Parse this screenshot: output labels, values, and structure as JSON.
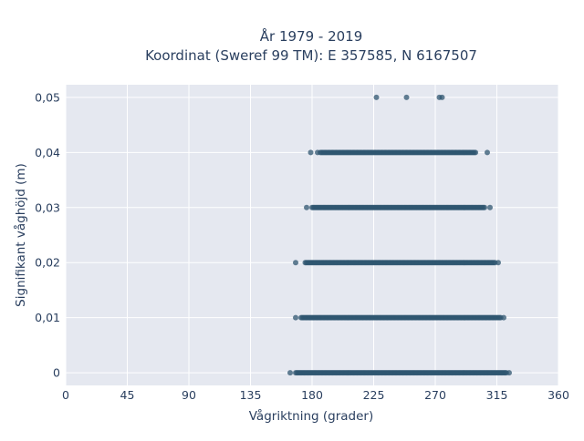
{
  "chart_data": {
    "type": "scatter",
    "title_lines": [
      "År 1979 - 2019",
      "Koordinat (Sweref 99 TM): E 357585, N 6167507"
    ],
    "xlabel": "Vågriktning (grader)",
    "ylabel": "Signifikant våghöjd (m)",
    "xlim": [
      0,
      360
    ],
    "ylim": [
      -0.0023,
      0.0523
    ],
    "x_ticks": [
      0,
      45,
      90,
      135,
      180,
      225,
      270,
      315,
      360
    ],
    "x_tick_labels": [
      "0",
      "45",
      "90",
      "135",
      "180",
      "225",
      "270",
      "315",
      "360"
    ],
    "y_ticks": [
      0,
      0.01,
      0.02,
      0.03,
      0.04,
      0.05
    ],
    "y_tick_labels": [
      "0",
      "0,01",
      "0,02",
      "0,03",
      "0,04",
      "0,05"
    ],
    "grid": true,
    "marker_color": "#2f5570",
    "plot_bg": "#e5e8f0",
    "series": [
      {
        "y": 0.0,
        "dense_range": [
          168,
          322
        ],
        "x_extra": [
          164,
          324
        ]
      },
      {
        "y": 0.01,
        "dense_range": [
          172,
          318
        ],
        "x_extra": [
          168,
          320
        ]
      },
      {
        "y": 0.02,
        "dense_range": [
          175,
          314
        ],
        "x_extra": [
          168,
          316
        ]
      },
      {
        "y": 0.03,
        "dense_range": [
          180,
          306
        ],
        "x_extra": [
          176,
          310
        ]
      },
      {
        "y": 0.04,
        "dense_range": [
          186,
          300
        ],
        "x_extra": [
          179,
          184,
          308
        ]
      },
      {
        "y": 0.05,
        "dense_range": null,
        "x_extra": [
          227,
          249,
          273,
          275
        ]
      }
    ]
  }
}
